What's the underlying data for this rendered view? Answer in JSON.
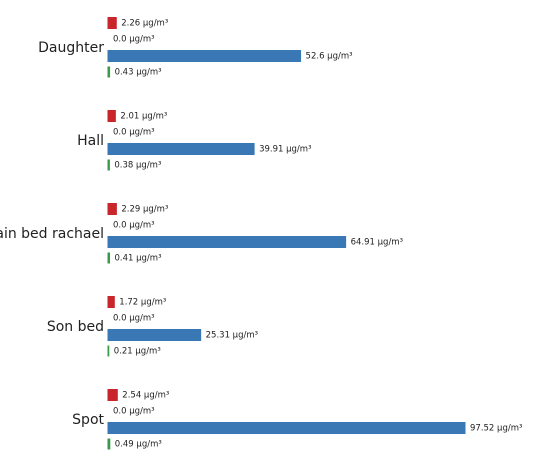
{
  "chart_data": {
    "type": "bar",
    "categories": [
      "Daughter",
      "Hall",
      "Main bed rachael",
      "Son bed",
      "Spot"
    ],
    "series": [
      {
        "color": "#c8262b",
        "values": [
          2.26,
          2.01,
          2.29,
          1.72,
          2.54
        ],
        "value_labels": [
          "2.26 μg/m³",
          "2.01 μg/m³",
          "2.29 μg/m³",
          "1.72 μg/m³",
          "2.54 μg/m³"
        ]
      },
      {
        "color": "#f0b323",
        "values": [
          0,
          0,
          0,
          0,
          0
        ],
        "value_labels": [
          "0.0 μg/m³",
          "0.0 μg/m³",
          "0.0 μg/m³",
          "0.0 μg/m³",
          "0.0 μg/m³"
        ]
      },
      {
        "color": "#3a78b5",
        "values": [
          52.6,
          39.91,
          64.91,
          25.31,
          97.52
        ],
        "value_labels": [
          "52.6 μg/m³",
          "39.91 μg/m³",
          "64.91 μg/m³",
          "25.31 μg/m³",
          "97.52 μg/m³"
        ]
      },
      {
        "color": "#3a9a4a",
        "values": [
          0.43,
          0.38,
          0.41,
          0.21,
          0.49
        ],
        "value_labels": [
          "0.43 μg/m³",
          "0.38 μg/m³",
          "0.41 μg/m³",
          "0.21 μg/m³",
          "0.49 μg/m³"
        ]
      }
    ]
  }
}
